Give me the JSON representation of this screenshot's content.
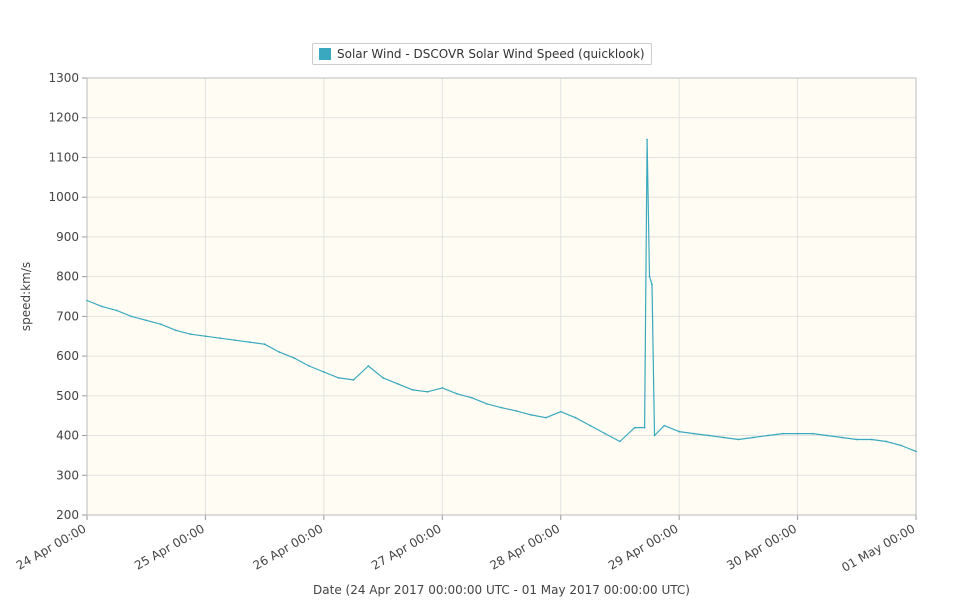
{
  "chart_data": {
    "type": "line",
    "xlabel": "Date (24 Apr 2017 00:00:00 UTC - 01 May 2017 00:00:00 UTC)",
    "ylabel": "speed:km/s",
    "ylim": [
      200,
      1300
    ],
    "yticks": [
      200,
      300,
      400,
      500,
      600,
      700,
      800,
      900,
      1000,
      1100,
      1200,
      1300
    ],
    "xlim": [
      "2017-04-24 00:00",
      "2017-05-01 00:00"
    ],
    "xticks": [
      "24 Apr 00:00",
      "25 Apr 00:00",
      "26 Apr 00:00",
      "27 Apr 00:00",
      "28 Apr 00:00",
      "29 Apr 00:00",
      "30 Apr 00:00",
      "01 May 00:00"
    ],
    "grid": true,
    "legend_position": "top-center",
    "background_color": "#fffdf3",
    "series": [
      {
        "name": "Solar Wind - DSCOVR Solar Wind Speed (quicklook)",
        "color": "#3aa8bf",
        "x": [
          "2017-04-24 00:00",
          "2017-04-24 03:00",
          "2017-04-24 06:00",
          "2017-04-24 09:00",
          "2017-04-24 12:00",
          "2017-04-24 15:00",
          "2017-04-24 18:00",
          "2017-04-24 21:00",
          "2017-04-25 00:00",
          "2017-04-25 03:00",
          "2017-04-25 06:00",
          "2017-04-25 09:00",
          "2017-04-25 12:00",
          "2017-04-25 15:00",
          "2017-04-25 18:00",
          "2017-04-25 21:00",
          "2017-04-26 00:00",
          "2017-04-26 03:00",
          "2017-04-26 06:00",
          "2017-04-26 09:00",
          "2017-04-26 12:00",
          "2017-04-26 15:00",
          "2017-04-26 18:00",
          "2017-04-26 21:00",
          "2017-04-27 00:00",
          "2017-04-27 03:00",
          "2017-04-27 06:00",
          "2017-04-27 09:00",
          "2017-04-27 12:00",
          "2017-04-27 15:00",
          "2017-04-27 18:00",
          "2017-04-27 21:00",
          "2017-04-28 00:00",
          "2017-04-28 03:00",
          "2017-04-28 06:00",
          "2017-04-28 09:00",
          "2017-04-28 12:00",
          "2017-04-28 15:00",
          "2017-04-28 17:00",
          "2017-04-28 17:30",
          "2017-04-28 18:00",
          "2017-04-28 18:30",
          "2017-04-28 19:00",
          "2017-04-28 21:00",
          "2017-04-29 00:00",
          "2017-04-29 03:00",
          "2017-04-29 06:00",
          "2017-04-29 09:00",
          "2017-04-29 12:00",
          "2017-04-29 15:00",
          "2017-04-29 18:00",
          "2017-04-29 21:00",
          "2017-04-30 00:00",
          "2017-04-30 03:00",
          "2017-04-30 06:00",
          "2017-04-30 09:00",
          "2017-04-30 12:00",
          "2017-04-30 15:00",
          "2017-04-30 18:00",
          "2017-04-30 21:00",
          "2017-05-01 00:00"
        ],
        "values": [
          740,
          725,
          715,
          700,
          690,
          680,
          665,
          655,
          650,
          645,
          640,
          635,
          630,
          610,
          595,
          575,
          560,
          545,
          540,
          575,
          545,
          530,
          515,
          510,
          520,
          505,
          495,
          480,
          470,
          462,
          452,
          445,
          460,
          445,
          425,
          405,
          385,
          420,
          420,
          1145,
          800,
          780,
          400,
          425,
          410,
          405,
          400,
          395,
          390,
          395,
          400,
          405,
          405,
          405,
          400,
          395,
          390,
          390,
          385,
          375,
          360
        ]
      }
    ]
  }
}
